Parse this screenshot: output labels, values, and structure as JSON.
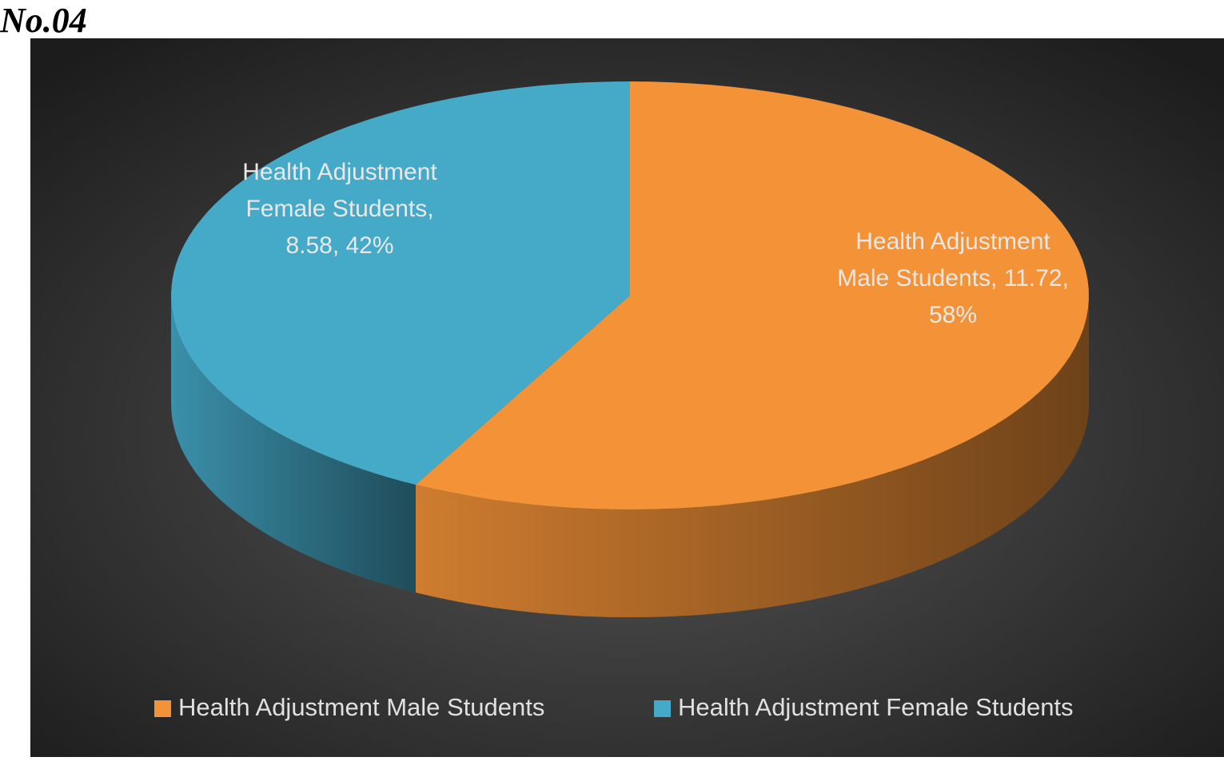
{
  "title": "No.04",
  "chart_data": {
    "type": "pie3d",
    "categories": [
      "Health Adjustment Male Students",
      "Health Adjustment Female Students"
    ],
    "values": [
      11.72,
      8.58
    ],
    "data_labels": [
      "Health Adjustment Male Students, 11.72, 58%",
      "Health Adjustment Female Students, 8.58, 42%"
    ],
    "colors": [
      "#f39237",
      "#45a9c8"
    ],
    "legend": "bottom"
  }
}
